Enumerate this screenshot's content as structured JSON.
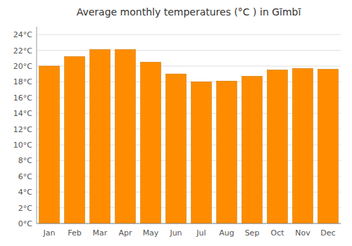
{
  "chart_data": {
    "type": "bar",
    "title": "Average monthly temperatures (°C ) in Gīmbī",
    "categories": [
      "Jan",
      "Feb",
      "Mar",
      "Apr",
      "May",
      "Jun",
      "Jul",
      "Aug",
      "Sep",
      "Oct",
      "Nov",
      "Dec"
    ],
    "values": [
      20.0,
      21.2,
      22.1,
      22.1,
      20.5,
      19.0,
      18.0,
      18.1,
      18.7,
      19.5,
      19.7,
      19.6
    ],
    "color": "#FF8C00",
    "ylim": [
      0,
      25
    ],
    "yticks": [
      {
        "value": 0,
        "label": "0°C"
      },
      {
        "value": 2,
        "label": "2°C"
      },
      {
        "value": 4,
        "label": "4°C"
      },
      {
        "value": 6,
        "label": "6°C"
      },
      {
        "value": 8,
        "label": "8°C"
      },
      {
        "value": 10,
        "label": "10°C"
      },
      {
        "value": 12,
        "label": "12°C"
      },
      {
        "value": 14,
        "label": "14°C"
      },
      {
        "value": 16,
        "label": "16°C"
      },
      {
        "value": 18,
        "label": "18°C"
      },
      {
        "value": 20,
        "label": "20°C"
      },
      {
        "value": 22,
        "label": "22°C"
      },
      {
        "value": 24,
        "label": "24°C"
      }
    ],
    "grid": true
  }
}
